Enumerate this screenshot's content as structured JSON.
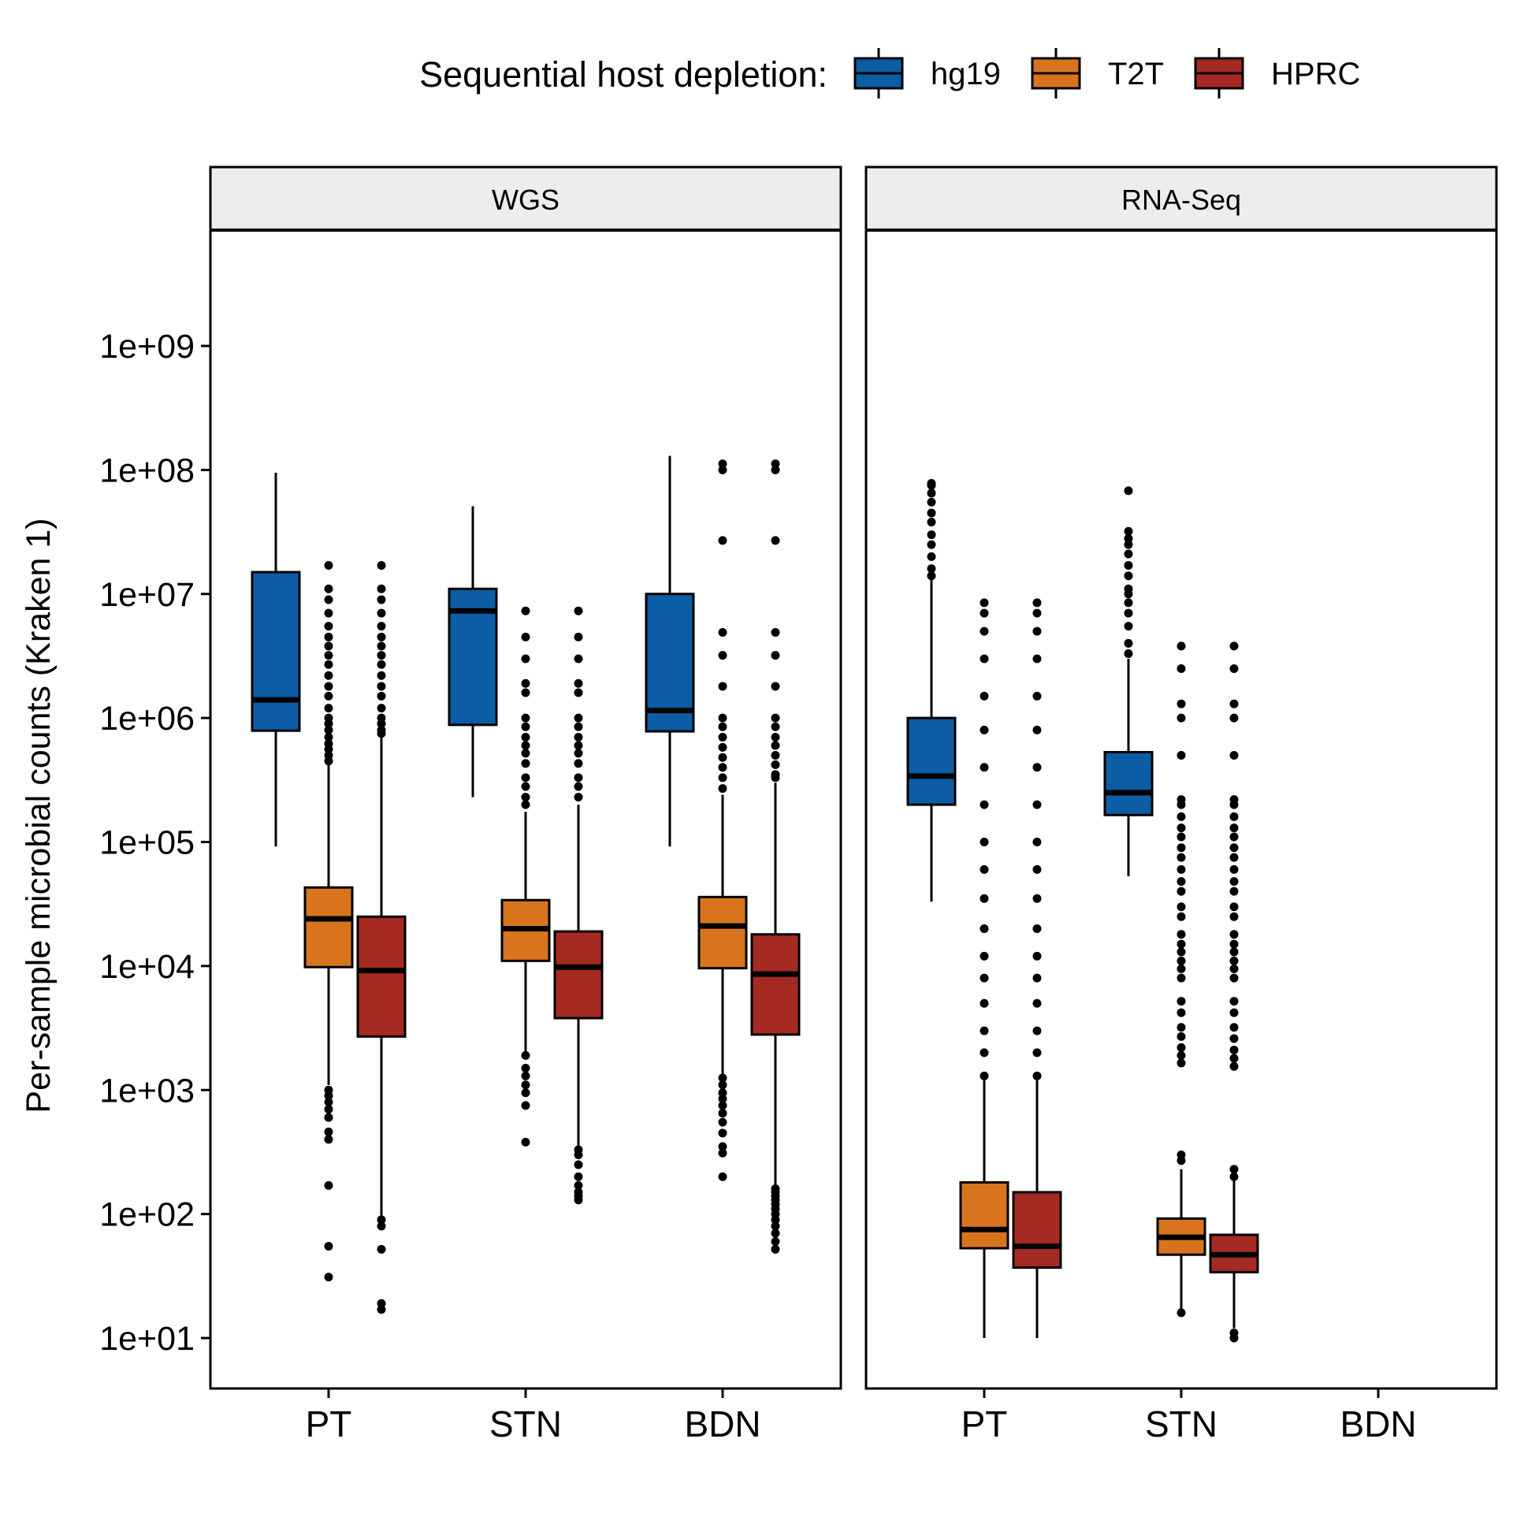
{
  "legend": {
    "title": "Sequential host depletion:",
    "entries": [
      {
        "name": "hg19",
        "color": "#0C5DA5"
      },
      {
        "name": "T2T",
        "color": "#D9741E"
      },
      {
        "name": "HPRC",
        "color": "#A52A22"
      }
    ]
  },
  "chart_data": {
    "type": "boxplot",
    "ylabel": "Per-sample microbial counts (Kraken 1)",
    "xlabel": "",
    "y_scale": "log10",
    "ylim": [
      3.5,
      30000000000.0
    ],
    "y_ticks": [
      10,
      100,
      1000,
      10000,
      100000,
      1000000,
      10000000,
      100000000,
      1000000000
    ],
    "y_tick_labels": [
      "1e+01",
      "1e+02",
      "1e+03",
      "1e+04",
      "1e+05",
      "1e+06",
      "1e+07",
      "1e+08",
      "1e+09"
    ],
    "categories": [
      "PT",
      "STN",
      "BDN"
    ],
    "series_names": [
      "hg19",
      "T2T",
      "HPRC"
    ],
    "panels": [
      {
        "title": "WGS",
        "groups": [
          {
            "category": "PT",
            "boxes": [
              {
                "series": "hg19",
                "whisker_low": 92000,
                "q1": 790000,
                "median": 1400000,
                "q3": 15000000,
                "whisker_high": 95000000,
                "outliers": []
              },
              {
                "series": "T2T",
                "whisker_low": 1100,
                "q1": 9800,
                "median": 24000,
                "q3": 43000,
                "whisker_high": 420000,
                "outliers": [
                  1000,
                  900,
                  800,
                  700,
                  600,
                  460,
                  400,
                  170,
                  55,
                  31,
                  450000,
                  500000,
                  560000,
                  620000,
                  700000,
                  800000,
                  900000,
                  1000000,
                  1200000,
                  1500000,
                  1800000,
                  2200000,
                  2700000,
                  3200000,
                  3800000,
                  4500000,
                  5500000,
                  7000000,
                  9000000,
                  11000000,
                  17000000
                ]
              }
            ]
          },
          {
            "category": "STN",
            "boxes": [
              {
                "series": "hg19",
                "whisker_low": 230000,
                "q1": 880000,
                "median": 7300000,
                "q3": 11000000,
                "whisker_high": 51000000,
                "outliers": []
              },
              {
                "series": "T2T",
                "whisker_low": 1950,
                "q1": 11000,
                "median": 20000,
                "q3": 34000,
                "whisker_high": 175000,
                "outliers": [
                  1900,
                  1500,
                  1300,
                  1100,
                  950,
                  750,
                  380,
                  200000,
                  230000,
                  280000,
                  330000,
                  430000,
                  520000,
                  600000,
                  700000,
                  850000,
                  1000000,
                  1600000,
                  1900000,
                  3000000,
                  4500000,
                  7300000
                ]
              }
            ]
          },
          {
            "category": "BDN",
            "boxes": [
              {
                "series": "hg19",
                "whisker_low": 92000,
                "q1": 780000,
                "median": 1150000,
                "q3": 10000000,
                "whisker_high": 130000000,
                "outliers": []
              },
              {
                "series": "T2T",
                "whisker_low": 1300,
                "q1": 9600,
                "median": 21000,
                "q3": 36000,
                "whisker_high": 240000,
                "outliers": [
                  1250,
                  1100,
                  950,
                  850,
                  750,
                  650,
                  550,
                  450,
                  350,
                  310,
                  200,
                  270000,
                  330000,
                  400000,
                  480000,
                  580000,
                  700000,
                  850000,
                  1000000,
                  1800000,
                  3200000,
                  4900000,
                  27000000,
                  100000000,
                  112000000
                ]
              },
              {
                "series": "HPRC",
                "whisker_low": 165,
                "q1": 2800,
                "median": 8600,
                "q3": 18000,
                "whisker_high": 300000,
                "outliers": [
                  160,
                  150,
                  140,
                  130,
                  120,
                  110,
                  100,
                  90,
                  80,
                  70,
                  60,
                  52,
                  330000,
                  350000,
                  420000,
                  500000,
                  600000,
                  700000,
                  850000,
                  1000000,
                  1800000,
                  3200000,
                  4900000,
                  27000000,
                  100000000,
                  112000000
                ]
              }
            ]
          }
        ],
        "extra_boxes": [
          {
            "category": "PT",
            "series": "HPRC",
            "whisker_low": 95,
            "q1": 2700,
            "median": 9200,
            "q3": 25000,
            "whisker_high": 700000,
            "outliers": [
              90,
              80,
              52,
              19,
              17,
              750000,
              800000,
              900000,
              1000000,
              1200000,
              1500000,
              1800000,
              2200000,
              2700000,
              3200000,
              3800000,
              4500000,
              5500000,
              7000000,
              9000000,
              11000000,
              17000000
            ]
          },
          {
            "category": "STN",
            "series": "HPRC",
            "whisker_low": 350,
            "q1": 3800,
            "median": 9800,
            "q3": 19000,
            "whisker_high": 200000,
            "outliers": [
              330,
              300,
              250,
              200,
              170,
              150,
              140,
              130,
              230000,
              280000,
              330000,
              430000,
              520000,
              600000,
              700000,
              850000,
              1000000,
              1600000,
              1900000,
              3000000,
              4500000,
              7300000
            ]
          }
        ]
      },
      {
        "title": "RNA-Seq",
        "groups": [
          {
            "category": "PT",
            "boxes": [
              {
                "series": "hg19",
                "whisker_low": 33000,
                "q1": 200000,
                "median": 340000,
                "q3": 1000000,
                "whisker_high": 13000000,
                "outliers": [
                  14000000,
                  16000000,
                  20000000,
                  25000000,
                  30000000,
                  38000000,
                  45000000,
                  55000000,
                  65000000,
                  75000000,
                  78000000
                ]
              },
              {
                "series": "T2T",
                "whisker_low": 10,
                "q1": 53,
                "median": 75,
                "q3": 180,
                "whisker_high": 1200,
                "outliers": [
                  1300,
                  2000,
                  3000,
                  5000,
                  8000,
                  12000,
                  20000,
                  35000,
                  60000,
                  100000,
                  200000,
                  400000,
                  800000,
                  1500000,
                  3000000,
                  5000000,
                  7000000,
                  8500000
                ]
              },
              {
                "series": "HPRC",
                "whisker_low": 10,
                "q1": 37,
                "median": 55,
                "q3": 150,
                "whisker_high": 1200,
                "outliers": [
                  1300,
                  2000,
                  3000,
                  5000,
                  8000,
                  12000,
                  20000,
                  35000,
                  60000,
                  100000,
                  200000,
                  400000,
                  800000,
                  1500000,
                  3000000,
                  5000000,
                  7000000,
                  8500000
                ]
              }
            ]
          },
          {
            "category": "STN",
            "boxes": [
              {
                "series": "hg19",
                "whisker_low": 53000,
                "q1": 165000,
                "median": 250000,
                "q3": 530000,
                "whisker_high": 3000000,
                "outliers": [
                  3300000,
                  4000000,
                  5500000,
                  7000000,
                  8500000,
                  10000000,
                  11000000,
                  14000000,
                  17000000,
                  21000000,
                  25000000,
                  28000000,
                  32000000,
                  68000000
                ]
              },
              {
                "series": "T2T",
                "whisker_low": 17,
                "q1": 47,
                "median": 65,
                "q3": 92,
                "whisker_high": 230,
                "outliers": [
                  16,
                  270,
                  300,
                  1650,
                  1900,
                  2200,
                  2700,
                  3200,
                  4200,
                  5200,
                  8000,
                  9500,
                  11000,
                  13000,
                  15000,
                  18000,
                  25000,
                  30000,
                  40000,
                  48000,
                  60000,
                  75000,
                  90000,
                  110000,
                  130000,
                  160000,
                  200000,
                  220000,
                  500000,
                  1000000,
                  1300000,
                  2500000,
                  3800000
                ]
              },
              {
                "series": "HPRC",
                "whisker_low": 12,
                "q1": 34,
                "median": 47,
                "q3": 68,
                "whisker_high": 190,
                "outliers": [
                  10,
                  11,
                  200,
                  230,
                  1550,
                  1800,
                  2100,
                  2600,
                  3200,
                  4200,
                  5200,
                  8000,
                  9500,
                  11000,
                  13000,
                  15000,
                  18000,
                  25000,
                  30000,
                  40000,
                  48000,
                  60000,
                  75000,
                  90000,
                  110000,
                  130000,
                  160000,
                  200000,
                  220000,
                  500000,
                  1000000,
                  1300000,
                  2500000,
                  3800000
                ]
              }
            ]
          },
          {
            "category": "BDN",
            "boxes": []
          }
        ]
      }
    ]
  }
}
